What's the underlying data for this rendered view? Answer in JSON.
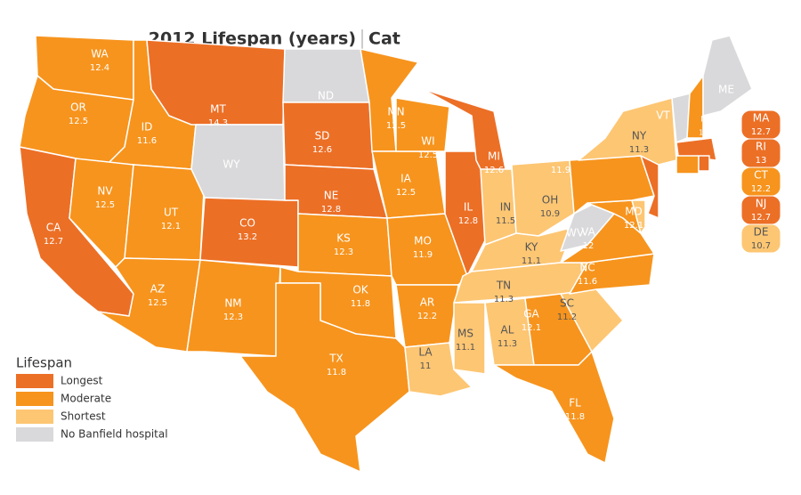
{
  "title": {
    "main": "2012 Lifespan (years)",
    "sub": "Cat"
  },
  "legend": {
    "title": "Lifespan",
    "items": [
      {
        "label": "Longest",
        "color": "#ec6f26"
      },
      {
        "label": "Moderate",
        "color": "#f7941d"
      },
      {
        "label": "Shortest",
        "color": "#fdc673"
      },
      {
        "label": "No Banfield hospital",
        "color": "#d9d9db"
      }
    ]
  },
  "states": [
    {
      "abbr": "WA",
      "value": 12.4,
      "color": "#f7941d"
    },
    {
      "abbr": "OR",
      "value": 12.5,
      "color": "#f7941d"
    },
    {
      "abbr": "CA",
      "value": 12.7,
      "color": "#ec6f26"
    },
    {
      "abbr": "ID",
      "value": 11.6,
      "color": "#f7941d"
    },
    {
      "abbr": "NV",
      "value": 12.5,
      "color": "#f7941d"
    },
    {
      "abbr": "UT",
      "value": 12.1,
      "color": "#f7941d"
    },
    {
      "abbr": "AZ",
      "value": 12.5,
      "color": "#f7941d"
    },
    {
      "abbr": "MT",
      "value": 14.3,
      "color": "#ec6f26"
    },
    {
      "abbr": "WY",
      "color": "#d9d9db"
    },
    {
      "abbr": "CO",
      "value": 13.2,
      "color": "#ec6f26"
    },
    {
      "abbr": "NM",
      "value": 12.3,
      "color": "#f7941d"
    },
    {
      "abbr": "ND",
      "color": "#d9d9db"
    },
    {
      "abbr": "SD",
      "value": 12.6,
      "color": "#ec6f26"
    },
    {
      "abbr": "NE",
      "value": 12.8,
      "color": "#ec6f26"
    },
    {
      "abbr": "KS",
      "value": 12.3,
      "color": "#f7941d"
    },
    {
      "abbr": "OK",
      "value": 11.8,
      "color": "#f7941d"
    },
    {
      "abbr": "TX",
      "value": 11.8,
      "color": "#f7941d"
    },
    {
      "abbr": "MN",
      "value": 12.5,
      "color": "#f7941d"
    },
    {
      "abbr": "IA",
      "value": 12.5,
      "color": "#f7941d"
    },
    {
      "abbr": "MO",
      "value": 11.9,
      "color": "#f7941d"
    },
    {
      "abbr": "AR",
      "value": 12.2,
      "color": "#f7941d"
    },
    {
      "abbr": "LA",
      "value": 11,
      "color": "#fdc673"
    },
    {
      "abbr": "WI",
      "value": 12.5,
      "color": "#f7941d"
    },
    {
      "abbr": "IL",
      "value": 12.8,
      "color": "#ec6f26"
    },
    {
      "abbr": "MI",
      "value": 12.6,
      "color": "#ec6f26"
    },
    {
      "abbr": "IN",
      "value": 11.5,
      "color": "#fdc673"
    },
    {
      "abbr": "OH",
      "value": 10.9,
      "color": "#fdc673"
    },
    {
      "abbr": "KY",
      "value": 11.1,
      "color": "#fdc673"
    },
    {
      "abbr": "TN",
      "value": 11.3,
      "color": "#fdc673"
    },
    {
      "abbr": "MS",
      "value": 11.1,
      "color": "#fdc673"
    },
    {
      "abbr": "AL",
      "value": 11.3,
      "color": "#fdc673"
    },
    {
      "abbr": "GA",
      "value": 12.1,
      "color": "#f7941d"
    },
    {
      "abbr": "FL",
      "value": 11.8,
      "color": "#f7941d"
    },
    {
      "abbr": "SC",
      "value": 11.2,
      "color": "#fdc673"
    },
    {
      "abbr": "NC",
      "value": 11.6,
      "color": "#f7941d"
    },
    {
      "abbr": "VA",
      "value": 12,
      "color": "#f7941d"
    },
    {
      "abbr": "WV",
      "color": "#d9d9db"
    },
    {
      "abbr": "MD",
      "value": 12.1,
      "color": "#f7941d"
    },
    {
      "abbr": "DE",
      "value": 10.7,
      "color": "#fdc673"
    },
    {
      "abbr": "PA",
      "value": 11.9,
      "color": "#f7941d"
    },
    {
      "abbr": "NJ",
      "value": 12.7,
      "color": "#ec6f26"
    },
    {
      "abbr": "NY",
      "value": 11.3,
      "color": "#fdc673"
    },
    {
      "abbr": "VT",
      "color": "#d9d9db"
    },
    {
      "abbr": "NH",
      "value": 11.9,
      "color": "#f7941d"
    },
    {
      "abbr": "ME",
      "color": "#d9d9db"
    },
    {
      "abbr": "MA",
      "value": 12.7,
      "color": "#ec6f26"
    },
    {
      "abbr": "CT",
      "value": 12.2,
      "color": "#f7941d"
    },
    {
      "abbr": "RI",
      "value": 13,
      "color": "#ec6f26"
    }
  ]
}
